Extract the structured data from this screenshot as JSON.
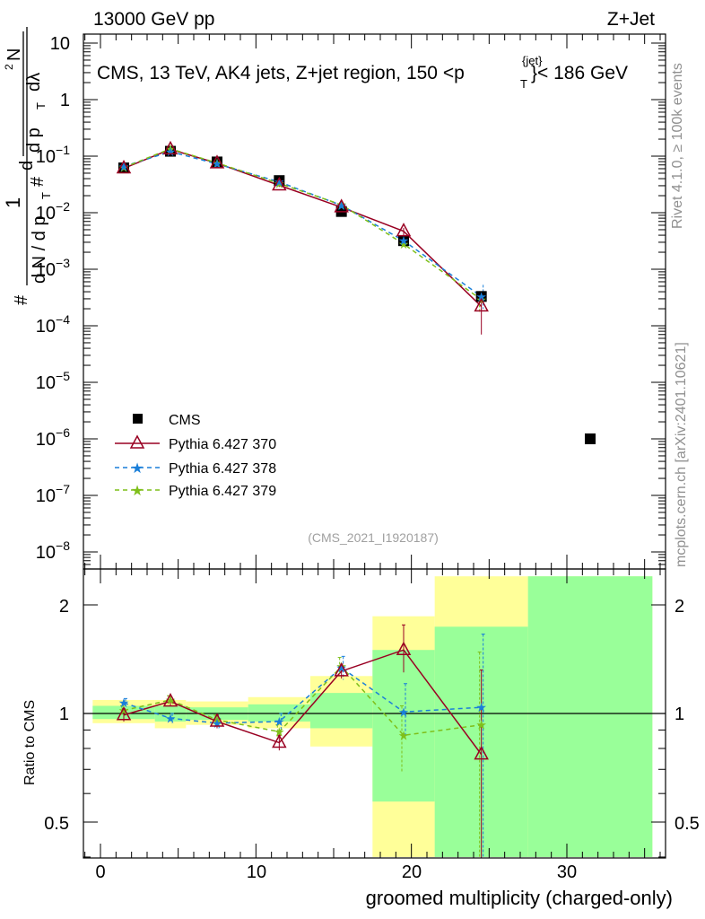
{
  "header": {
    "left": "13000 GeV pp",
    "right": "Z+Jet"
  },
  "side_text": {
    "top": "Rivet 4.1.0, ≥ 100k events",
    "bottom": "mcplots.cern.ch [arXiv:2401.10621]"
  },
  "colors": {
    "cms": "#000000",
    "p370": "#990022",
    "p378": "#1a7fd9",
    "p379": "#7fbf1a",
    "band_yellow": "#ffff99",
    "band_green": "#99ff99"
  },
  "chart_data": [
    {
      "type": "scatter",
      "panel": "main",
      "title": "CMS, 13 TeV, AK4 jets, Z+jet region, 150 <p",
      "title_sup": "{jet}",
      "title_sub": "T",
      "title_tail": "}< 186 GeV",
      "ylabel_parts": [
        "#",
        "1",
        "d N / d p",
        "T",
        "#",
        "d",
        "2",
        "N",
        "d p",
        "T",
        "dλ"
      ],
      "yscale": "log",
      "ylim": [
        5e-09,
        20
      ],
      "xlim": [
        -1,
        36
      ],
      "ytick_labels": [
        {
          "value": 10,
          "label": "10",
          "sup": ""
        },
        {
          "value": 1,
          "label": "1",
          "sup": ""
        },
        {
          "value": 0.1,
          "label": "10",
          "sup": "−1"
        },
        {
          "value": 0.01,
          "label": "10",
          "sup": "−2"
        },
        {
          "value": 0.001,
          "label": "10",
          "sup": "−3"
        },
        {
          "value": 0.0001,
          "label": "10",
          "sup": "−4"
        },
        {
          "value": 1e-05,
          "label": "10",
          "sup": "−5"
        },
        {
          "value": 1e-06,
          "label": "10",
          "sup": "−6"
        },
        {
          "value": 1e-07,
          "label": "10",
          "sup": "−7"
        },
        {
          "value": 1e-08,
          "label": "10",
          "sup": "−8"
        }
      ],
      "watermark": "(CMS_2021_I1920187)",
      "legend": [
        "CMS",
        "Pythia 6.427 370",
        "Pythia 6.427 378",
        "Pythia 6.427 379"
      ],
      "legend_position": "bottom-left",
      "series": [
        {
          "name": "CMS",
          "x": [
            1.5,
            4.5,
            7.5,
            11.5,
            15.5,
            19.5,
            24.5,
            31.5
          ],
          "y": [
            0.062,
            0.122,
            0.079,
            0.037,
            0.0105,
            0.0032,
            0.00033,
            1e-06
          ]
        },
        {
          "name": "Pythia 6.427 370",
          "x": [
            1.5,
            4.5,
            7.5,
            11.5,
            15.5,
            19.5,
            24.5
          ],
          "y": [
            0.061,
            0.132,
            0.075,
            0.0305,
            0.0125,
            0.0047,
            0.00022
          ],
          "err_lo": [
            0.003,
            0.005,
            0.004,
            0.002,
            0.0015,
            0.0007,
            0.00015
          ],
          "err_hi": [
            0.003,
            0.005,
            0.004,
            0.002,
            0.0015,
            0.0007,
            0.00013
          ]
        },
        {
          "name": "Pythia 6.427 378",
          "x": [
            1.5,
            4.5,
            7.5,
            11.5,
            15.5,
            19.5,
            24.5
          ],
          "y": [
            0.066,
            0.12,
            0.073,
            0.035,
            0.0135,
            0.0032,
            0.00033
          ],
          "err_lo": [
            0.003,
            0.005,
            0.004,
            0.002,
            0.0015,
            0.0006,
            0.00013
          ],
          "err_hi": [
            0.003,
            0.005,
            0.004,
            0.002,
            0.0015,
            0.0006,
            0.0002
          ]
        },
        {
          "name": "Pythia 6.427 379",
          "x": [
            1.5,
            4.5,
            7.5,
            11.5,
            15.5,
            19.5,
            24.5
          ],
          "y": [
            0.063,
            0.135,
            0.076,
            0.033,
            0.0138,
            0.0028,
            0.00029
          ],
          "err_lo": [
            0.003,
            0.005,
            0.004,
            0.002,
            0.0015,
            0.0005,
            0.00012
          ],
          "err_hi": [
            0.003,
            0.005,
            0.004,
            0.002,
            0.0015,
            0.0005,
            0.00012
          ]
        }
      ]
    },
    {
      "type": "scatter",
      "panel": "ratio",
      "ylabel": "Ratio to CMS",
      "xlabel": "groomed multiplicity (charged-only)",
      "yscale": "log",
      "ylim": [
        0.4,
        2.4
      ],
      "xlim": [
        -1,
        36
      ],
      "yticks": [
        0.5,
        1,
        2
      ],
      "ytick_labels": [
        "0.5",
        "1",
        "2"
      ],
      "xticks": [
        0,
        10,
        20,
        30
      ],
      "xtick_labels": [
        "0",
        "10",
        "20",
        "30"
      ],
      "bands": [
        {
          "x0": -0.5,
          "x1": 3.5,
          "yellow": [
            0.94,
            1.09
          ],
          "green": [
            0.965,
            1.05
          ]
        },
        {
          "x0": 3.5,
          "x1": 5.5,
          "yellow": [
            0.91,
            1.09
          ],
          "green": [
            0.95,
            1.05
          ]
        },
        {
          "x0": 5.5,
          "x1": 9.5,
          "yellow": [
            0.93,
            1.08
          ],
          "green": [
            0.96,
            1.04
          ]
        },
        {
          "x0": 9.5,
          "x1": 13.5,
          "yellow": [
            0.91,
            1.11
          ],
          "green": [
            0.95,
            1.06
          ]
        },
        {
          "x0": 13.5,
          "x1": 17.5,
          "yellow": [
            0.81,
            1.27
          ],
          "green": [
            0.91,
            1.14
          ]
        },
        {
          "x0": 17.5,
          "x1": 21.5,
          "yellow": [
            0.4,
            1.86
          ],
          "green": [
            0.57,
            1.5
          ]
        },
        {
          "x0": 21.5,
          "x1": 27.5,
          "yellow": [
            0.4,
            2.4
          ],
          "green": [
            0.4,
            1.74
          ]
        },
        {
          "x0": 27.5,
          "x1": 35.5,
          "yellow": [
            0.4,
            2.4
          ],
          "green": [
            0.4,
            2.4
          ]
        }
      ],
      "series": [
        {
          "name": "Pythia 6.427 370",
          "x": [
            1.5,
            4.5,
            7.5,
            11.5,
            15.5,
            19.5,
            24.5
          ],
          "y": [
            0.99,
            1.08,
            0.95,
            0.83,
            1.31,
            1.5,
            0.77
          ],
          "err_lo": [
            0.04,
            0.03,
            0.04,
            0.04,
            0.06,
            0.2,
            0.4
          ],
          "err_hi": [
            0.04,
            0.03,
            0.04,
            0.04,
            0.06,
            0.26,
            0.55
          ]
        },
        {
          "name": "Pythia 6.427 378",
          "x": [
            1.5,
            4.5,
            7.5,
            11.5,
            15.5,
            19.5,
            24.5
          ],
          "y": [
            1.07,
            0.97,
            0.94,
            0.95,
            1.34,
            1.01,
            1.04
          ],
          "err_lo": [
            0.03,
            0.03,
            0.03,
            0.05,
            0.1,
            0.15,
            0.7
          ],
          "err_hi": [
            0.03,
            0.03,
            0.03,
            0.05,
            0.1,
            0.2,
            0.62
          ]
        },
        {
          "name": "Pythia 6.427 379",
          "x": [
            1.5,
            4.5,
            7.5,
            11.5,
            15.5,
            19.5,
            24.5
          ],
          "y": [
            1.02,
            1.09,
            0.96,
            0.89,
            1.35,
            0.87,
            0.93
          ],
          "err_lo": [
            0.03,
            0.03,
            0.03,
            0.04,
            0.08,
            0.18,
            0.55
          ],
          "err_hi": [
            0.03,
            0.03,
            0.03,
            0.04,
            0.08,
            0.18,
            0.55
          ]
        }
      ]
    }
  ]
}
